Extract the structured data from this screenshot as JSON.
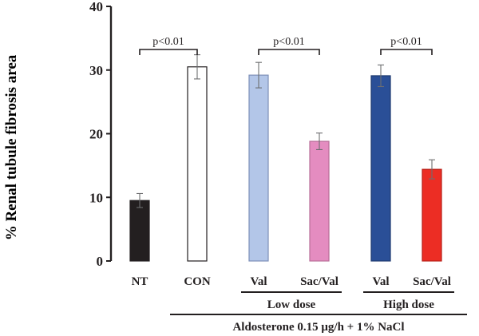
{
  "chart_data": {
    "type": "bar",
    "ylabel": "% Renal tubule fibrosis area",
    "ylim": [
      0,
      40
    ],
    "yticks": [
      0,
      10,
      20,
      30,
      40
    ],
    "grid": false,
    "categories": [
      "NT",
      "CON",
      "Val",
      "Sac/Val",
      "Val",
      "Sac/Val"
    ],
    "values": [
      9.5,
      30.5,
      29.2,
      18.8,
      29.1,
      14.4
    ],
    "errors": [
      1.1,
      1.9,
      2.0,
      1.3,
      1.7,
      1.5
    ],
    "bar_colors": [
      "#231f20",
      "#ffffff",
      "#b3c6e8",
      "#e48cc0",
      "#2a4f97",
      "#ec2d24"
    ],
    "bar_strokes": [
      "#231f20",
      "#231f20",
      "#7d8fb8",
      "#b86e99",
      "#1e3a70",
      "#b81f18"
    ],
    "annotations": [
      {
        "text": "p<0.01",
        "from": 0,
        "to": 1
      },
      {
        "text": "p<0.01",
        "from": 2,
        "to": 3
      },
      {
        "text": "p<0.01",
        "from": 4,
        "to": 5
      }
    ],
    "groups": [
      {
        "label": "Low dose",
        "from": 2,
        "to": 3
      },
      {
        "label": "High dose",
        "from": 4,
        "to": 5
      }
    ],
    "supergroup": {
      "label": "Aldosterone 0.15 μg/h + 1% NaCl",
      "from": 1,
      "to": 5
    }
  }
}
